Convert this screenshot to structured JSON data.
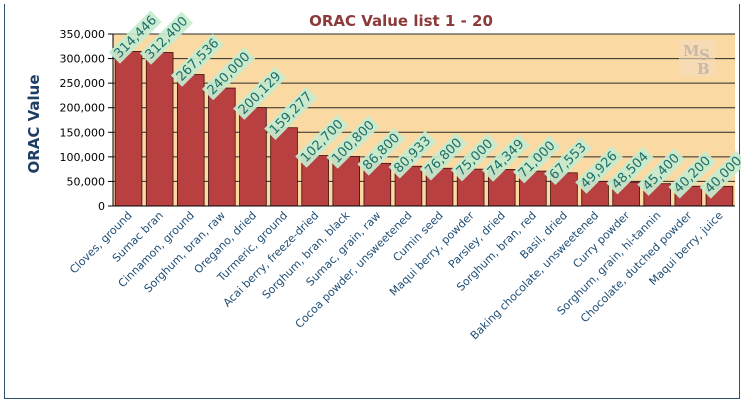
{
  "chart_data": {
    "type": "bar",
    "title": "ORAC Value list 1 - 20",
    "ylabel": "ORAC Value",
    "xlabel": "",
    "ylim": [
      0,
      350000
    ],
    "yticks": [
      0,
      50000,
      100000,
      150000,
      200000,
      250000,
      300000,
      350000
    ],
    "ytick_labels": [
      "0",
      "50,000",
      "100,000",
      "150,000",
      "200,000",
      "250,000",
      "300,000",
      "350,000"
    ],
    "grid": true,
    "legend": "none",
    "bar_color": "#b84040",
    "background_color": "#fbd9a3",
    "categories": [
      "Cloves, ground",
      "Sumac bran",
      "Cinnamon, ground",
      "Sorghum, bran, raw",
      "Oregano, dried",
      "Turmeric, ground",
      "Acai berry, freeze-dried",
      "Sorghum, bran, black",
      "Sumac, grain, raw",
      "Cocoa powder, unsweetened",
      "Cumin seed",
      "Maqui berry, powder",
      "Parsley, dried",
      "Sorghum, bran, red",
      "Basil, dried",
      "Baking chocolate, unsweetened",
      "Curry powder",
      "Sorghum, grain, hi-tannin",
      "Chocolate, dutched powder",
      "Maqui berry, juice"
    ],
    "values": [
      314446,
      312400,
      267536,
      240000,
      200129,
      159277,
      102700,
      100800,
      86800,
      80933,
      76800,
      75000,
      74349,
      71000,
      67553,
      49926,
      48504,
      45400,
      40200,
      40000
    ],
    "value_labels": [
      "314,446",
      "312,400",
      "267,536",
      "240,000",
      "200,129",
      "159,277",
      "102,700",
      "100,800",
      "86,800",
      "80,933",
      "76,800",
      "75,000",
      "74,349",
      "71,000",
      "67,553",
      "49,926",
      "48,504",
      "45,400",
      "40,200",
      "40,000"
    ]
  },
  "logo": {
    "icon": "msb-logo",
    "letters": [
      "M",
      "S",
      "B"
    ]
  }
}
